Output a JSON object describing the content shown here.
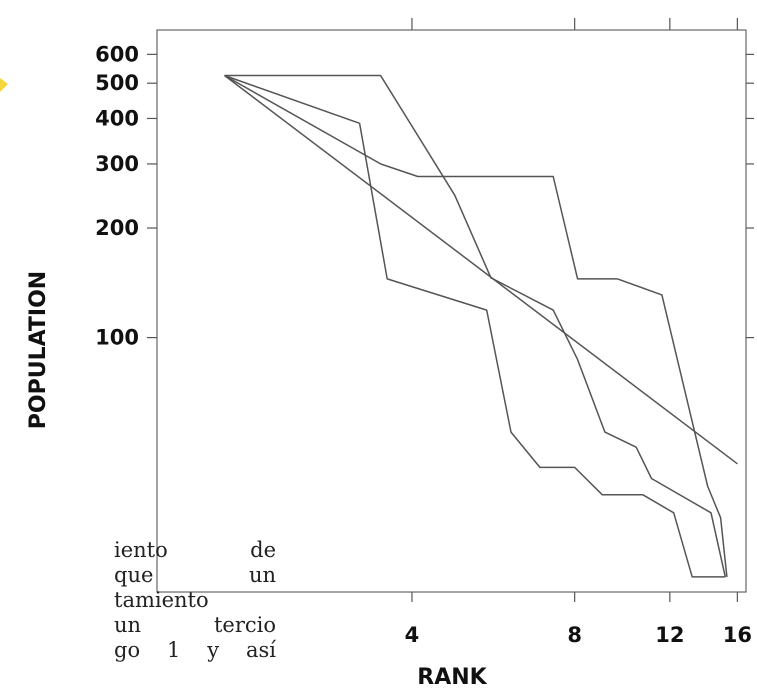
{
  "chart_data": {
    "type": "line",
    "xlabel": "RANK",
    "ylabel": "POPULATION",
    "x_scale": "log",
    "y_scale": "log",
    "xlim": [
      1.35,
      16.6
    ],
    "ylim": [
      20,
      700
    ],
    "x_ticks": [
      4,
      8,
      12,
      16
    ],
    "x_tick_labels": [
      "4",
      "8",
      "12",
      "16"
    ],
    "y_ticks": [
      600,
      500,
      400,
      300,
      200,
      100
    ],
    "y_tick_labels": [
      "600",
      "500",
      "400",
      "300",
      "200",
      "100"
    ],
    "grid": false,
    "legend": "none",
    "line_color": "#555555",
    "series": [
      {
        "x": [
          1.8,
          3.5,
          4.8,
          5.6,
          7.3,
          8.1,
          9.1,
          10.4,
          11.1,
          14.3,
          15.2
        ],
        "y": [
          525,
          525,
          246,
          146,
          119,
          87,
          55,
          50,
          41,
          33,
          22
        ]
      },
      {
        "x": [
          1.8,
          3.5,
          4.1,
          6.3,
          7.3,
          8.1,
          9.6,
          11.6,
          14.1,
          14.9,
          15.3
        ],
        "y": [
          525,
          300,
          277,
          277,
          277,
          145,
          145,
          131,
          39,
          32,
          22
        ]
      },
      {
        "x": [
          1.8,
          3.2,
          3.6,
          5.5,
          6.1,
          6.9,
          8.0,
          9.0,
          10.7,
          12.2,
          13.2,
          14.4,
          15.2
        ],
        "y": [
          525,
          388,
          145,
          119,
          55,
          44,
          44,
          37,
          37,
          33,
          22,
          22,
          22
        ]
      },
      {
        "x": [
          1.8,
          16.0
        ],
        "y": [
          525,
          45
        ]
      }
    ]
  },
  "text_fragments": [
    "iento  de",
    "que  un",
    "tamiento",
    "un  tercio",
    "go 1 y así"
  ]
}
